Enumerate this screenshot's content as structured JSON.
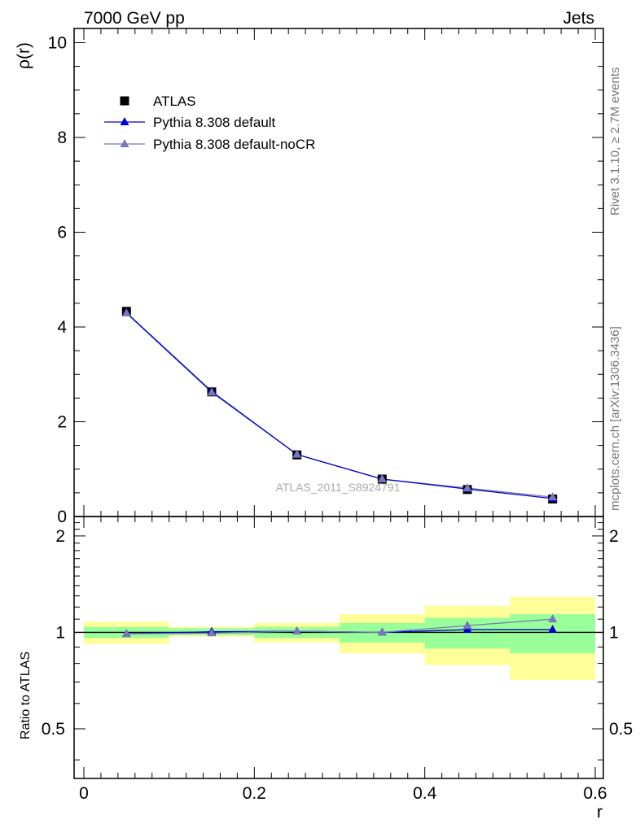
{
  "header": {
    "left_label": "7000 GeV pp",
    "right_label": "Jets"
  },
  "side_labels": {
    "rivet": "Rivet 3.1.10, ≥ 2.7M events",
    "mcplots": "mcplots.cern.ch [arXiv:1306.3436]"
  },
  "colors": {
    "data": "#000000",
    "pythia_default": "#0000cc",
    "pythia_nocr": "#7777bb",
    "band_inner": "#99ff99",
    "band_outer": "#ffff99"
  },
  "chart_data": [
    {
      "type": "line",
      "role": "main",
      "analysis_label": "ATLAS_2011_S8924791",
      "ylabel": "ρ(r)",
      "xlim": [
        0,
        0.6
      ],
      "ylim": [
        0,
        10.3
      ],
      "yticks": [
        0,
        2,
        4,
        6,
        8,
        10
      ],
      "ytick_labels": [
        "0",
        "2",
        "4",
        "6",
        "8",
        "10"
      ],
      "x": [
        0.05,
        0.15,
        0.25,
        0.35,
        0.45,
        0.55
      ],
      "series": [
        {
          "name": "ATLAS",
          "marker": "square",
          "values": [
            4.33,
            2.63,
            1.3,
            0.79,
            0.57,
            0.37
          ]
        },
        {
          "name": "Pythia 8.308 default",
          "marker": "triangle",
          "values": [
            4.3,
            2.64,
            1.31,
            0.79,
            0.58,
            0.38
          ]
        },
        {
          "name": "Pythia 8.308 default-noCR",
          "marker": "triangle",
          "values": [
            4.29,
            2.62,
            1.31,
            0.79,
            0.6,
            0.41
          ]
        }
      ],
      "legend": "top-left"
    },
    {
      "type": "line",
      "role": "ratio",
      "ylabel": "Ratio to ATLAS",
      "xlabel": "r",
      "xlim": [
        0,
        0.6
      ],
      "ylim": [
        0.35,
        2.3
      ],
      "yticks": [
        0.5,
        1,
        2
      ],
      "ytick_labels": [
        "0.5",
        "1",
        "2"
      ],
      "xticks": [
        0,
        0.2,
        0.4,
        0.6
      ],
      "xtick_labels": [
        "0",
        "0.2",
        "0.4",
        "0.6"
      ],
      "bins": [
        [
          0.0,
          0.1
        ],
        [
          0.1,
          0.2
        ],
        [
          0.2,
          0.3
        ],
        [
          0.3,
          0.4
        ],
        [
          0.4,
          0.5
        ],
        [
          0.5,
          0.6
        ]
      ],
      "band_inner": [
        [
          0.96,
          1.04
        ],
        [
          0.98,
          1.03
        ],
        [
          0.96,
          1.04
        ],
        [
          0.93,
          1.07
        ],
        [
          0.89,
          1.11
        ],
        [
          0.86,
          1.14
        ]
      ],
      "band_outer": [
        [
          0.92,
          1.08
        ],
        [
          0.97,
          1.04
        ],
        [
          0.93,
          1.07
        ],
        [
          0.86,
          1.14
        ],
        [
          0.79,
          1.21
        ],
        [
          0.71,
          1.29
        ]
      ],
      "x": [
        0.05,
        0.15,
        0.25,
        0.35,
        0.45,
        0.55
      ],
      "series": [
        {
          "name": "Pythia 8.308 default",
          "values": [
            0.99,
            1.005,
            1.008,
            1.0,
            1.02,
            1.02
          ]
        },
        {
          "name": "Pythia 8.308 default-noCR",
          "values": [
            0.99,
            0.995,
            1.008,
            1.0,
            1.05,
            1.1
          ]
        }
      ]
    }
  ]
}
